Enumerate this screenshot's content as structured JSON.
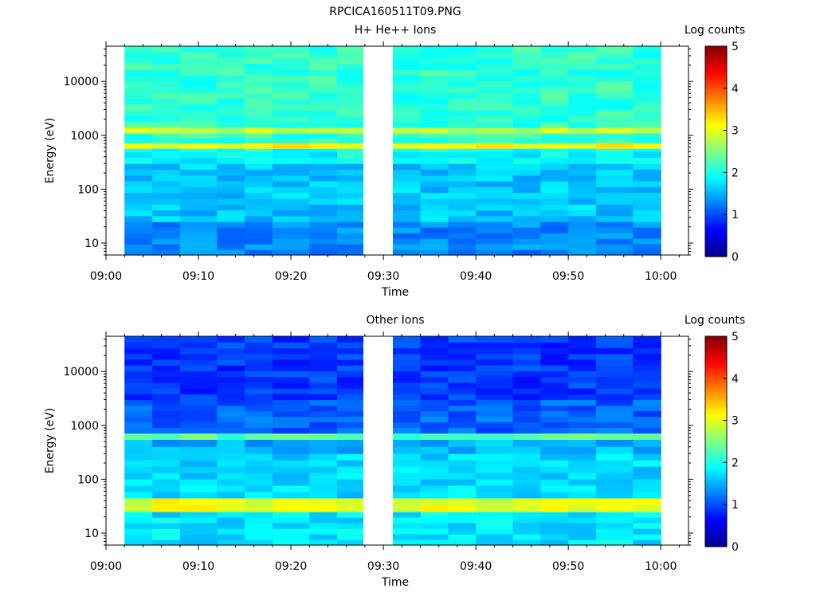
{
  "figure_title": "RPCICA160511T09.PNG",
  "colormap": [
    "#00008f",
    "#0000ff",
    "#0080ff",
    "#00ffff",
    "#80ff80",
    "#ffff00",
    "#ff8000",
    "#ff0000",
    "#800000"
  ],
  "chart_data": [
    {
      "type": "heatmap",
      "title": "H+ He++ Ions",
      "xlabel": "Time",
      "ylabel": "Energy (eV)",
      "colorbar_label": "Log counts",
      "x_ticks": [
        "09:00",
        "09:10",
        "09:20",
        "09:30",
        "09:40",
        "09:50",
        "10:00"
      ],
      "y_ticks": [
        "10",
        "100",
        "1000",
        "10000"
      ],
      "y_scale": "log",
      "ylim": [
        6,
        45000
      ],
      "xlim": [
        "09:00",
        "10:03"
      ],
      "colorbar_range": [
        0,
        5
      ],
      "colorbar_ticks": [
        "0",
        "1",
        "2",
        "3",
        "4",
        "5"
      ],
      "data_gap": [
        "09:28",
        "09:31"
      ],
      "time_bins": [
        "09:02",
        "09:05",
        "09:08",
        "09:12",
        "09:15",
        "09:18",
        "09:22",
        "09:25",
        "09:28",
        "09:31",
        "09:34",
        "09:37",
        "09:40",
        "09:44",
        "09:47",
        "09:50",
        "09:53",
        "09:57",
        "10:00"
      ],
      "energy_bands": [
        {
          "range": [
            6,
            25
          ],
          "log_counts": 1.3
        },
        {
          "range": [
            25,
            300
          ],
          "log_counts": 1.6
        },
        {
          "range": [
            300,
            500
          ],
          "log_counts": 1.9
        },
        {
          "range": [
            500,
            570
          ],
          "log_counts": 2.0
        },
        {
          "range": [
            570,
            720
          ],
          "log_counts": 3.1
        },
        {
          "range": [
            720,
            1100
          ],
          "log_counts": 2.1
        },
        {
          "range": [
            1100,
            1400
          ],
          "log_counts": 2.8
        },
        {
          "range": [
            1400,
            45000
          ],
          "log_counts": 2.1
        }
      ]
    },
    {
      "type": "heatmap",
      "title": "Other Ions",
      "xlabel": "Time",
      "ylabel": "Energy (eV)",
      "colorbar_label": "Log counts",
      "x_ticks": [
        "09:00",
        "09:10",
        "09:20",
        "09:30",
        "09:40",
        "09:50",
        "10:00"
      ],
      "y_ticks": [
        "10",
        "100",
        "1000",
        "10000"
      ],
      "y_scale": "log",
      "ylim": [
        6,
        45000
      ],
      "xlim": [
        "09:00",
        "10:03"
      ],
      "colorbar_range": [
        0,
        5
      ],
      "colorbar_ticks": [
        "0",
        "1",
        "2",
        "3",
        "4",
        "5"
      ],
      "data_gap": [
        "09:28",
        "09:31"
      ],
      "time_bins": [
        "09:02",
        "09:05",
        "09:08",
        "09:12",
        "09:15",
        "09:18",
        "09:22",
        "09:25",
        "09:28",
        "09:31",
        "09:34",
        "09:37",
        "09:40",
        "09:44",
        "09:47",
        "09:50",
        "09:53",
        "09:57",
        "10:00"
      ],
      "energy_bands": [
        {
          "range": [
            6,
            25
          ],
          "log_counts": 1.75
        },
        {
          "range": [
            25,
            45
          ],
          "log_counts": 3.0
        },
        {
          "range": [
            45,
            300
          ],
          "log_counts": 1.7
        },
        {
          "range": [
            300,
            550
          ],
          "log_counts": 1.5
        },
        {
          "range": [
            550,
            720
          ],
          "log_counts": 2.3
        },
        {
          "range": [
            720,
            3000
          ],
          "log_counts": 1.1
        },
        {
          "range": [
            3000,
            45000
          ],
          "log_counts": 0.9
        }
      ]
    }
  ]
}
